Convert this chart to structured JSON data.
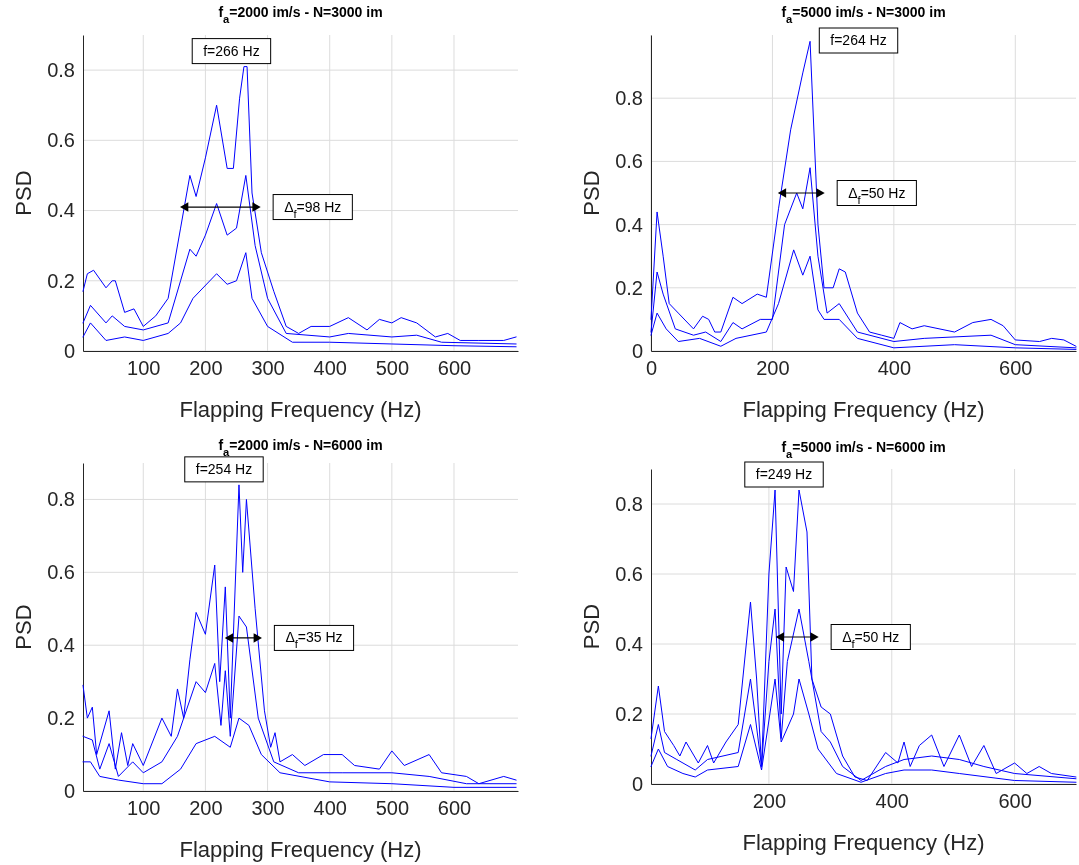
{
  "chart_data": [
    {
      "type": "line",
      "title": "f$_{a}$=2000 im/s - N=3000 im",
      "xlabel": "Flapping Frequency (Hz)",
      "ylabel": "PSD",
      "xlim": [
        3,
        703
      ],
      "xticks": [
        100,
        200,
        300,
        400,
        500,
        600
      ],
      "ylim": [
        0,
        0.9
      ],
      "yticks": [
        0,
        0.2,
        0.4,
        0.6,
        0.8
      ],
      "grid": true,
      "annotations": [
        {
          "text": "f=266 Hz",
          "x": 266,
          "y": 0.81
        },
        {
          "text": "Δ$_{f}$=98 Hz",
          "x": 280,
          "y": 0.41
        }
      ],
      "series": [
        {
          "color": "#0000ff",
          "x": [
            3,
            10,
            20,
            40,
            50,
            55,
            70,
            85,
            100,
            120,
            140,
            160,
            175,
            185,
            200,
            218,
            235,
            245,
            255,
            262,
            267,
            275,
            290,
            310,
            330,
            350,
            370,
            400,
            430,
            460,
            480,
            500,
            515,
            540,
            570,
            590,
            610,
            640,
            680,
            700
          ],
          "values": [
            0.17,
            0.22,
            0.23,
            0.18,
            0.2,
            0.2,
            0.11,
            0.12,
            0.07,
            0.1,
            0.15,
            0.35,
            0.5,
            0.44,
            0.55,
            0.7,
            0.52,
            0.52,
            0.72,
            0.81,
            0.81,
            0.45,
            0.28,
            0.17,
            0.07,
            0.05,
            0.07,
            0.07,
            0.095,
            0.06,
            0.09,
            0.08,
            0.095,
            0.08,
            0.04,
            0.05,
            0.03,
            0.03,
            0.03,
            0.04
          ]
        },
        {
          "color": "#0000ff",
          "x": [
            3,
            15,
            40,
            50,
            70,
            100,
            140,
            160,
            175,
            185,
            200,
            218,
            235,
            250,
            265,
            280,
            300,
            330,
            400,
            430,
            500,
            540,
            580,
            700
          ],
          "values": [
            0.08,
            0.13,
            0.08,
            0.1,
            0.07,
            0.06,
            0.08,
            0.2,
            0.29,
            0.27,
            0.33,
            0.42,
            0.33,
            0.35,
            0.5,
            0.3,
            0.15,
            0.05,
            0.04,
            0.05,
            0.04,
            0.045,
            0.025,
            0.02
          ]
        },
        {
          "color": "#0000ff",
          "x": [
            3,
            15,
            40,
            70,
            100,
            140,
            160,
            180,
            218,
            235,
            250,
            265,
            275,
            300,
            340,
            400,
            500,
            600,
            700
          ],
          "values": [
            0.04,
            0.08,
            0.03,
            0.04,
            0.03,
            0.05,
            0.08,
            0.15,
            0.22,
            0.19,
            0.2,
            0.28,
            0.15,
            0.07,
            0.025,
            0.025,
            0.02,
            0.015,
            0.012
          ]
        },
        {
          "type": "line",
          "marker": "triangle",
          "color": "#000000",
          "x": [
            168,
            280
          ],
          "values": [
            0.41,
            0.41
          ]
        }
      ]
    },
    {
      "type": "line",
      "title": "f$_{a}$=5000 im/s - N=3000 im",
      "xlabel": "Flapping Frequency (Hz)",
      "ylabel": "PSD",
      "xlim": [
        0,
        700
      ],
      "xticks": [
        0,
        200,
        400,
        600
      ],
      "ylim": [
        0,
        1
      ],
      "yticks": [
        0,
        0.2,
        0.4,
        0.6,
        0.8
      ],
      "grid": true,
      "annotations": [
        {
          "text": "f=264 Hz",
          "x": 264,
          "y": 0.98
        },
        {
          "text": "Δ$_{f}$=50 Hz",
          "x": 277,
          "y": 0.5
        }
      ],
      "series": [
        {
          "color": "#0000ff",
          "x": [
            0,
            10,
            20,
            30,
            45,
            70,
            85,
            95,
            105,
            115,
            135,
            150,
            175,
            190,
            210,
            230,
            250,
            262,
            275,
            285,
            300,
            310,
            320,
            340,
            360,
            380,
            400,
            410,
            430,
            450,
            500,
            530,
            560,
            580,
            600,
            640,
            660,
            680,
            700
          ],
          "values": [
            0.1,
            0.44,
            0.3,
            0.15,
            0.12,
            0.07,
            0.11,
            0.1,
            0.06,
            0.06,
            0.17,
            0.15,
            0.18,
            0.17,
            0.45,
            0.7,
            0.88,
            0.98,
            0.4,
            0.2,
            0.2,
            0.26,
            0.25,
            0.12,
            0.06,
            0.05,
            0.04,
            0.09,
            0.07,
            0.08,
            0.06,
            0.09,
            0.1,
            0.08,
            0.035,
            0.03,
            0.04,
            0.035,
            0.015
          ]
        },
        {
          "color": "#0000ff",
          "x": [
            0,
            10,
            20,
            40,
            70,
            90,
            115,
            135,
            150,
            180,
            200,
            220,
            240,
            250,
            262,
            275,
            290,
            310,
            340,
            400,
            450,
            560,
            600,
            700
          ],
          "values": [
            0.06,
            0.25,
            0.18,
            0.07,
            0.05,
            0.06,
            0.03,
            0.09,
            0.07,
            0.1,
            0.1,
            0.4,
            0.5,
            0.45,
            0.58,
            0.3,
            0.12,
            0.15,
            0.06,
            0.03,
            0.04,
            0.05,
            0.02,
            0.01
          ]
        },
        {
          "color": "#0000ff",
          "x": [
            0,
            10,
            25,
            45,
            80,
            115,
            140,
            190,
            210,
            235,
            250,
            262,
            275,
            285,
            310,
            340,
            400,
            500,
            600,
            700
          ],
          "values": [
            0.05,
            0.12,
            0.07,
            0.03,
            0.04,
            0.015,
            0.04,
            0.06,
            0.15,
            0.32,
            0.24,
            0.3,
            0.13,
            0.1,
            0.1,
            0.04,
            0.01,
            0.02,
            0.01,
            0.005
          ]
        },
        {
          "type": "line",
          "marker": "triangle",
          "color": "#000000",
          "x": [
            218,
            277
          ],
          "values": [
            0.5,
            0.5
          ]
        }
      ]
    },
    {
      "type": "line",
      "title": "f$_{a}$=2000 im/s - N=6000 im",
      "xlabel": "Flapping Frequency (Hz)",
      "ylabel": "PSD",
      "xlim": [
        3,
        703
      ],
      "xticks": [
        100,
        200,
        300,
        400,
        500,
        600
      ],
      "ylim": [
        0,
        0.9
      ],
      "yticks": [
        0,
        0.2,
        0.4,
        0.6,
        0.8
      ],
      "grid": true,
      "annotations": [
        {
          "text": "f=254 Hz",
          "x": 254,
          "y": 0.84
        },
        {
          "text": "Δ$_{f}$=35 Hz",
          "x": 282,
          "y": 0.42
        }
      ],
      "series": [
        {
          "color": "#0000ff",
          "x": [
            3,
            10,
            18,
            25,
            45,
            55,
            65,
            75,
            83,
            100,
            130,
            145,
            155,
            165,
            175,
            185,
            200,
            215,
            223,
            232,
            240,
            254,
            260,
            266,
            280,
            295,
            305,
            312,
            320,
            340,
            360,
            390,
            420,
            440,
            480,
            500,
            520,
            560,
            580,
            620,
            640,
            680,
            700
          ],
          "values": [
            0.29,
            0.2,
            0.23,
            0.1,
            0.22,
            0.06,
            0.16,
            0.07,
            0.13,
            0.07,
            0.2,
            0.15,
            0.28,
            0.2,
            0.36,
            0.49,
            0.43,
            0.62,
            0.3,
            0.56,
            0.2,
            0.84,
            0.6,
            0.8,
            0.5,
            0.22,
            0.12,
            0.16,
            0.08,
            0.1,
            0.07,
            0.1,
            0.1,
            0.07,
            0.06,
            0.11,
            0.07,
            0.1,
            0.05,
            0.04,
            0.02,
            0.04,
            0.03
          ]
        },
        {
          "color": "#0000ff",
          "x": [
            3,
            18,
            30,
            45,
            60,
            83,
            100,
            130,
            155,
            185,
            200,
            215,
            225,
            232,
            240,
            254,
            266,
            285,
            310,
            350,
            420,
            500,
            560,
            620,
            700
          ],
          "values": [
            0.15,
            0.14,
            0.06,
            0.13,
            0.04,
            0.08,
            0.05,
            0.08,
            0.15,
            0.3,
            0.27,
            0.35,
            0.18,
            0.33,
            0.15,
            0.48,
            0.45,
            0.2,
            0.08,
            0.05,
            0.05,
            0.05,
            0.04,
            0.02,
            0.02
          ]
        },
        {
          "color": "#0000ff",
          "x": [
            3,
            15,
            30,
            60,
            100,
            130,
            160,
            185,
            215,
            240,
            254,
            270,
            290,
            320,
            400,
            500,
            600,
            700
          ],
          "values": [
            0.08,
            0.08,
            0.04,
            0.03,
            0.02,
            0.02,
            0.06,
            0.13,
            0.15,
            0.12,
            0.2,
            0.18,
            0.1,
            0.05,
            0.025,
            0.02,
            0.01,
            0.01
          ]
        },
        {
          "type": "line",
          "marker": "triangle",
          "color": "#000000",
          "x": [
            240,
            282
          ],
          "values": [
            0.42,
            0.42
          ]
        }
      ]
    },
    {
      "type": "line",
      "title": "f$_{a}$=5000 im/s - N=6000 im",
      "xlabel": "Flapping Frequency (Hz)",
      "ylabel": "PSD",
      "xlim": [
        8,
        700
      ],
      "xticks": [
        200,
        400,
        600
      ],
      "ylim": [
        0,
        0.9
      ],
      "yticks": [
        0,
        0.2,
        0.4,
        0.6,
        0.8
      ],
      "grid": true,
      "annotations": [
        {
          "text": "f=249 Hz",
          "x": 249,
          "y": 0.84
        },
        {
          "text": "Δ$_{f}$=50 Hz",
          "x": 272,
          "y": 0.42
        }
      ],
      "series": [
        {
          "color": "#0000ff",
          "x": [
            8,
            20,
            30,
            45,
            55,
            65,
            85,
            100,
            110,
            130,
            150,
            170,
            180,
            188,
            200,
            210,
            220,
            228,
            240,
            249,
            262,
            270,
            285,
            300,
            320,
            340,
            360,
            390,
            410,
            420,
            430,
            445,
            465,
            485,
            510,
            530,
            550,
            570,
            600,
            620,
            640,
            660,
            700
          ],
          "values": [
            0.13,
            0.28,
            0.15,
            0.11,
            0.08,
            0.12,
            0.06,
            0.11,
            0.06,
            0.12,
            0.17,
            0.52,
            0.3,
            0.05,
            0.6,
            0.84,
            0.2,
            0.62,
            0.55,
            0.84,
            0.72,
            0.3,
            0.22,
            0.2,
            0.08,
            0.02,
            0.01,
            0.09,
            0.06,
            0.12,
            0.05,
            0.11,
            0.14,
            0.05,
            0.14,
            0.05,
            0.11,
            0.03,
            0.06,
            0.03,
            0.05,
            0.03,
            0.02
          ]
        },
        {
          "color": "#0000ff",
          "x": [
            8,
            20,
            30,
            50,
            80,
            100,
            150,
            170,
            188,
            200,
            210,
            220,
            230,
            249,
            265,
            285,
            300,
            320,
            350,
            390,
            420,
            465,
            510,
            550,
            600,
            700
          ],
          "values": [
            0.08,
            0.17,
            0.09,
            0.07,
            0.04,
            0.07,
            0.09,
            0.3,
            0.05,
            0.35,
            0.5,
            0.13,
            0.35,
            0.5,
            0.35,
            0.15,
            0.12,
            0.05,
            0.01,
            0.05,
            0.07,
            0.08,
            0.07,
            0.05,
            0.03,
            0.015
          ]
        },
        {
          "color": "#0000ff",
          "x": [
            8,
            20,
            35,
            60,
            80,
            100,
            150,
            170,
            188,
            210,
            220,
            240,
            249,
            265,
            280,
            310,
            350,
            390,
            420,
            465,
            510,
            600,
            700
          ],
          "values": [
            0.05,
            0.1,
            0.05,
            0.03,
            0.02,
            0.04,
            0.05,
            0.17,
            0.04,
            0.3,
            0.12,
            0.2,
            0.3,
            0.2,
            0.1,
            0.03,
            0.005,
            0.03,
            0.04,
            0.04,
            0.03,
            0.01,
            0.005
          ]
        },
        {
          "type": "line",
          "marker": "triangle",
          "color": "#000000",
          "x": [
            220,
            272
          ],
          "values": [
            0.42,
            0.42
          ]
        }
      ]
    }
  ]
}
